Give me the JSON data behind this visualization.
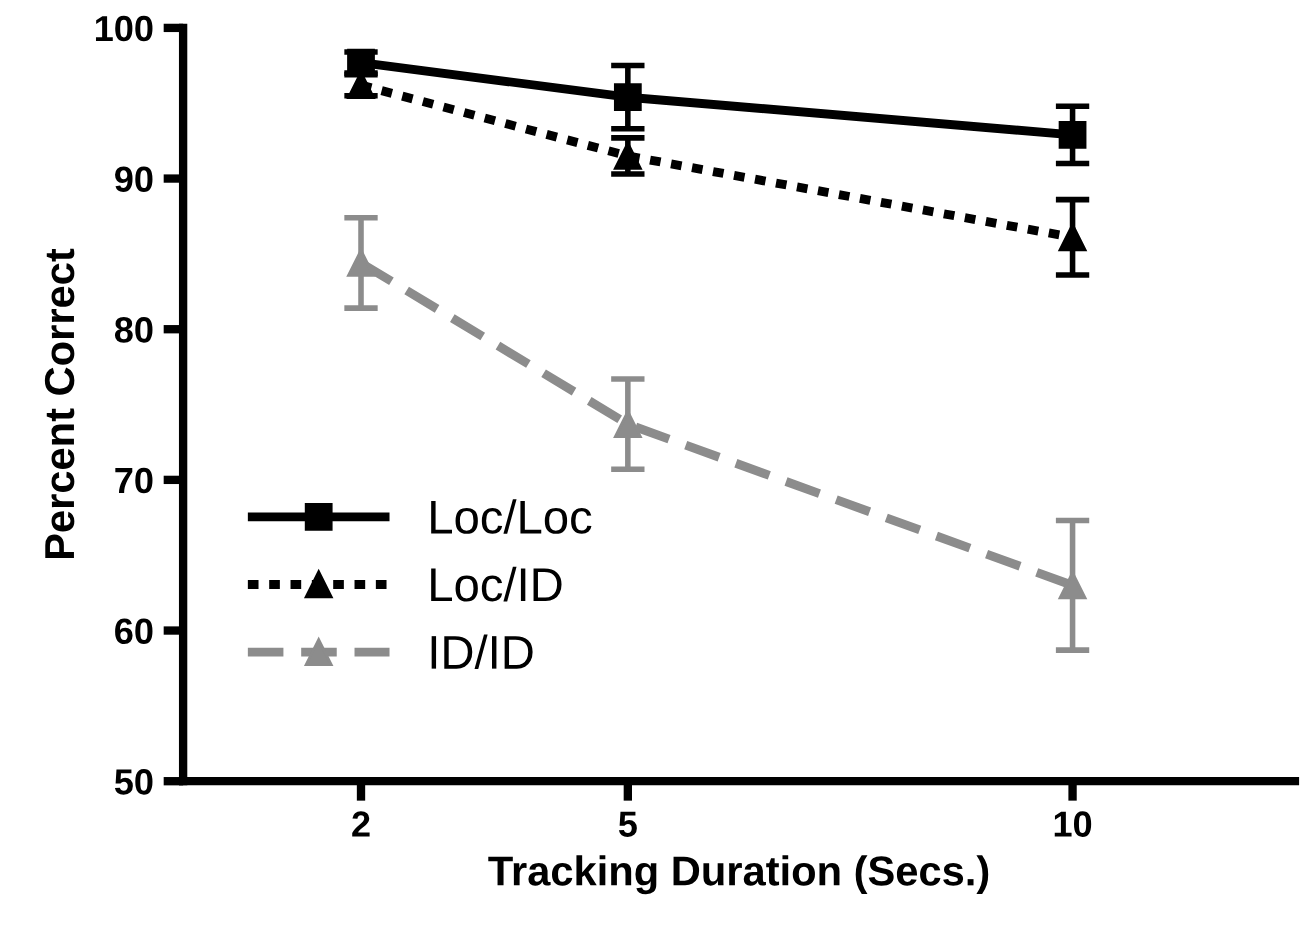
{
  "chart_data": {
    "type": "line",
    "xlabel": "Tracking Duration (Secs.)",
    "ylabel": "Percent Correct",
    "x": [
      2,
      5,
      10
    ],
    "xlim": [
      0,
      12.5
    ],
    "xticks": [
      2,
      5,
      10
    ],
    "ylim": [
      50,
      100
    ],
    "yticks": [
      50,
      60,
      70,
      80,
      90,
      100
    ],
    "grid": false,
    "legend": "bottom left",
    "series": [
      {
        "name": "Loc/Loc",
        "color": "#000000",
        "values": [
          97.7,
          95.4,
          92.9
        ],
        "errors": [
          0.7,
          2.1,
          1.9
        ],
        "marker": "square",
        "line_style": "solid"
      },
      {
        "name": "Loc/ID",
        "color": "#000000",
        "values": [
          96.2,
          91.5,
          86.1
        ],
        "errors": [
          0.7,
          1.2,
          2.5
        ],
        "marker": "triangle",
        "line_style": "dotted"
      },
      {
        "name": "ID/ID",
        "color": "#8c8c8c",
        "values": [
          84.4,
          73.7,
          63.0
        ],
        "errors": [
          3.0,
          3.0,
          4.3
        ],
        "marker": "triangle",
        "line_style": "dashed"
      }
    ]
  }
}
